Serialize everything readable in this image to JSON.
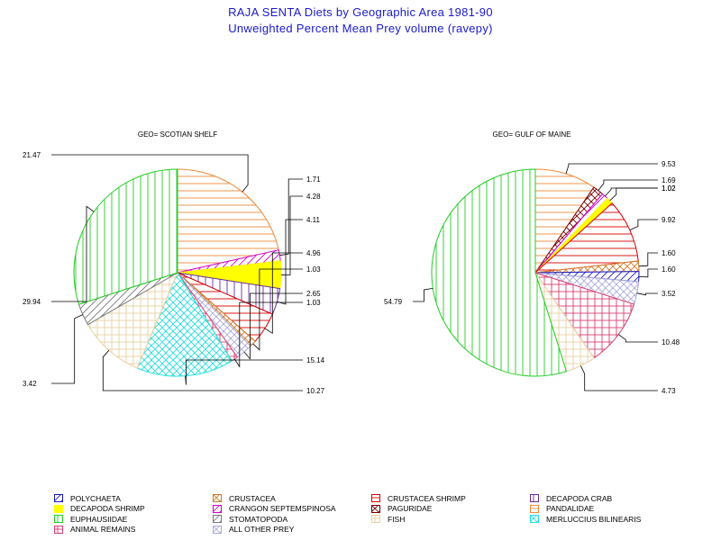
{
  "title_line1": "RAJA SENTA Diets by Geographic Area 1981-90",
  "title_line2": "Unweighted Percent Mean Prey volume (ravepy)",
  "categories": [
    {
      "key": "polychaeta",
      "label": "POLYCHAETA",
      "color": "#1a1acc",
      "pattern": "diag-right"
    },
    {
      "key": "crustacea",
      "label": "CRUSTACEA",
      "color": "#d27a28",
      "pattern": "cross-diag"
    },
    {
      "key": "crustacea_shrimp",
      "label": "CRUSTACEA SHRIMP",
      "color": "#d80000",
      "pattern": "horizontal"
    },
    {
      "key": "decapoda_crab",
      "label": "DECAPODA CRAB",
      "color": "#6a2a9a",
      "pattern": "vertical"
    },
    {
      "key": "decapoda_shrimp",
      "label": "DECAPODA SHRIMP",
      "color": "#ffff00",
      "pattern": "solid"
    },
    {
      "key": "crangon",
      "label": "CRANGON SEPTEMSPINOSA",
      "color": "#d000d0",
      "pattern": "diag-right"
    },
    {
      "key": "paguridae",
      "label": "PAGURIDAE",
      "color": "#7a0000",
      "pattern": "cross-diag"
    },
    {
      "key": "pandalidae",
      "label": "PANDALIDAE",
      "color": "#ee8a3a",
      "pattern": "horizontal"
    },
    {
      "key": "euphausiidae",
      "label": "EUPHAUSIIDAE",
      "color": "#22cc22",
      "pattern": "vertical"
    },
    {
      "key": "stomatopoda",
      "label": "STOMATOPODA",
      "color": "#777777",
      "pattern": "diag-right"
    },
    {
      "key": "fish",
      "label": "FISH",
      "color": "#e6d2a0",
      "pattern": "cross"
    },
    {
      "key": "merluccius",
      "label": "MERLUCCIUS BILINEARIS",
      "color": "#22dddd",
      "pattern": "cross-diag"
    },
    {
      "key": "animal_remains",
      "label": "ANIMAL REMAINS",
      "color": "#d84070",
      "pattern": "cross"
    },
    {
      "key": "other",
      "label": "ALL OTHER PREY",
      "color": "#aaaadd",
      "pattern": "cross-diag"
    }
  ],
  "chart_data": [
    {
      "type": "pie",
      "title": "GEO= SCOTIAN SHELF",
      "slices": [
        {
          "category": "pandalidae",
          "value": 21.47,
          "label": "21.47"
        },
        {
          "category": "crangon",
          "value": 1.71,
          "label": "1.71"
        },
        {
          "category": "decapoda_shrimp",
          "value": 4.28,
          "label": "4.28"
        },
        {
          "category": "decapoda_crab",
          "value": 4.11,
          "label": "4.11"
        },
        {
          "category": "crustacea_shrimp",
          "value": 4.96,
          "label": "4.96"
        },
        {
          "category": "crustacea",
          "value": 1.03,
          "label": "1.03"
        },
        {
          "category": "other",
          "value": 2.65,
          "label": "2.65"
        },
        {
          "category": "animal_remains",
          "value": 1.03,
          "label": "1.03"
        },
        {
          "category": "merluccius",
          "value": 15.14,
          "label": "15.14"
        },
        {
          "category": "fish",
          "value": 10.27,
          "label": "10.27"
        },
        {
          "category": "stomatopoda",
          "value": 3.42,
          "label": "3.42"
        },
        {
          "category": "euphausiidae",
          "value": 29.94,
          "label": "29.94"
        }
      ]
    },
    {
      "type": "pie",
      "title": "GEO= GULF OF MAINE",
      "slices": [
        {
          "category": "pandalidae",
          "value": 9.53,
          "label": "9.53"
        },
        {
          "category": "paguridae",
          "value": 1.69,
          "label": "1.69"
        },
        {
          "category": "crangon",
          "value": 1.02,
          "label": "1.02"
        },
        {
          "category": "decapoda_shrimp",
          "value": 1.02,
          "label": "1.02"
        },
        {
          "category": "crustacea_shrimp",
          "value": 9.92,
          "label": "9.92"
        },
        {
          "category": "crustacea",
          "value": 1.6,
          "label": "1.60"
        },
        {
          "category": "polychaeta",
          "value": 1.6,
          "label": "1.60"
        },
        {
          "category": "other",
          "value": 3.52,
          "label": "3.52"
        },
        {
          "category": "animal_remains",
          "value": 10.48,
          "label": "10.48"
        },
        {
          "category": "fish",
          "value": 4.73,
          "label": "4.73"
        },
        {
          "category": "euphausiidae",
          "value": 54.79,
          "label": "54.79"
        }
      ]
    }
  ]
}
